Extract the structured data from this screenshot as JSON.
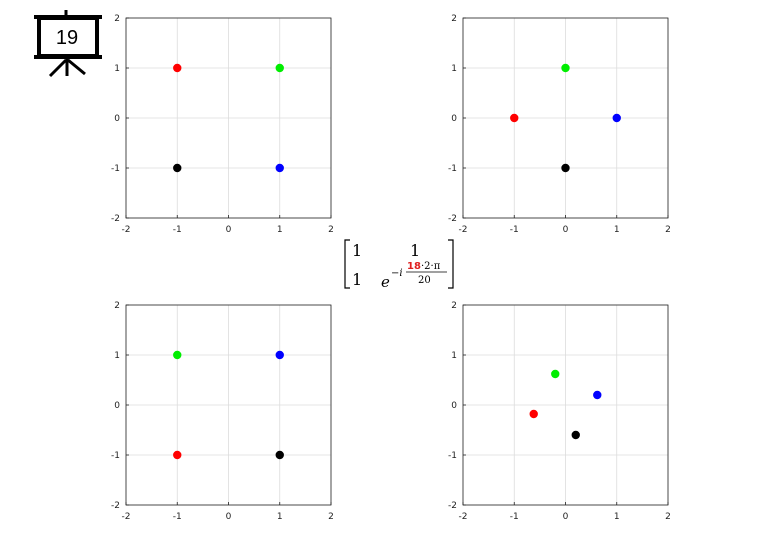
{
  "slide_number": "19",
  "matrix": {
    "r1c1": "1",
    "r1c2": "1",
    "r2c1": "1",
    "exp_base": "e",
    "exp_prefix": "−i",
    "frac_num_highlight": "18",
    "frac_num_rest": "·2·π",
    "frac_den": "20",
    "highlight_color": "#e02020"
  },
  "chart_data": [
    {
      "type": "scatter",
      "xlim": [
        -2,
        2
      ],
      "ylim": [
        -2,
        2
      ],
      "xticks": [
        "-2",
        "-1",
        "0",
        "1",
        "2"
      ],
      "yticks": [
        "-2",
        "-1",
        "0",
        "1",
        "2"
      ],
      "grid": true,
      "points": [
        {
          "x": -1,
          "y": 1,
          "color": "#ff0000"
        },
        {
          "x": 1,
          "y": 1,
          "color": "#00ee00"
        },
        {
          "x": -1,
          "y": -1,
          "color": "#000000"
        },
        {
          "x": 1,
          "y": -1,
          "color": "#0000ff"
        }
      ]
    },
    {
      "type": "scatter",
      "xlim": [
        -2,
        2
      ],
      "ylim": [
        -2,
        2
      ],
      "xticks": [
        "-2",
        "-1",
        "0",
        "1",
        "2"
      ],
      "yticks": [
        "-2",
        "-1",
        "0",
        "1",
        "2"
      ],
      "grid": true,
      "points": [
        {
          "x": -1,
          "y": 0,
          "color": "#ff0000"
        },
        {
          "x": 0,
          "y": 1,
          "color": "#00ee00"
        },
        {
          "x": 0,
          "y": -1,
          "color": "#000000"
        },
        {
          "x": 1,
          "y": 0,
          "color": "#0000ff"
        }
      ]
    },
    {
      "type": "scatter",
      "xlim": [
        -2,
        2
      ],
      "ylim": [
        -2,
        2
      ],
      "xticks": [
        "-2",
        "-1",
        "0",
        "1",
        "2"
      ],
      "yticks": [
        "-2",
        "-1",
        "0",
        "1",
        "2"
      ],
      "grid": true,
      "points": [
        {
          "x": -1,
          "y": -1,
          "color": "#ff0000"
        },
        {
          "x": -1,
          "y": 1,
          "color": "#00ee00"
        },
        {
          "x": 1,
          "y": -1,
          "color": "#000000"
        },
        {
          "x": 1,
          "y": 1,
          "color": "#0000ff"
        }
      ]
    },
    {
      "type": "scatter",
      "xlim": [
        -2,
        2
      ],
      "ylim": [
        -2,
        2
      ],
      "xticks": [
        "-2",
        "-1",
        "0",
        "1",
        "2"
      ],
      "yticks": [
        "-2",
        "-1",
        "0",
        "1",
        "2"
      ],
      "grid": true,
      "points": [
        {
          "x": -0.62,
          "y": -0.18,
          "color": "#ff0000"
        },
        {
          "x": -0.2,
          "y": 0.62,
          "color": "#00ee00"
        },
        {
          "x": 0.2,
          "y": -0.6,
          "color": "#000000"
        },
        {
          "x": 0.62,
          "y": 0.2,
          "color": "#0000ff"
        }
      ]
    }
  ]
}
